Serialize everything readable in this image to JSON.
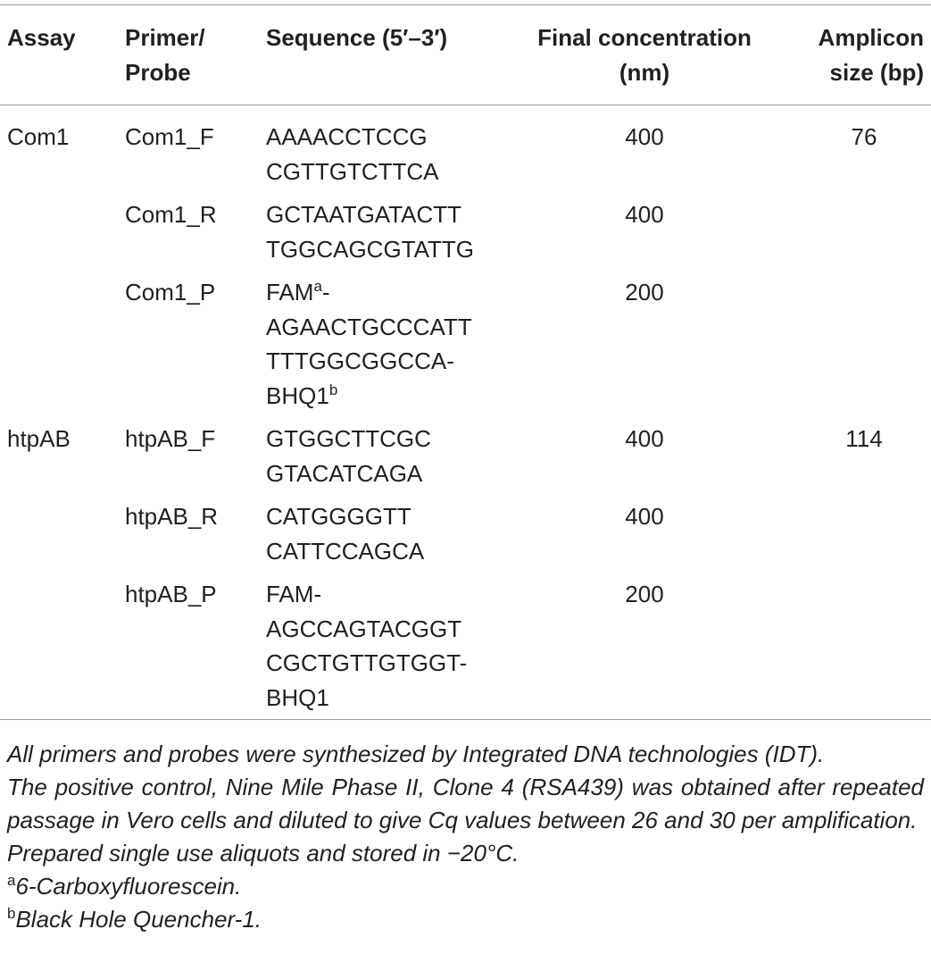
{
  "table": {
    "header": [
      [
        "Assay"
      ],
      [
        "Primer/",
        "Probe"
      ],
      [
        "Sequence (5′–3′)"
      ],
      [
        "Final concentration",
        "(nm)"
      ],
      [
        "Amplicon",
        "size (bp)"
      ]
    ],
    "groups": [
      {
        "assay": "Com1",
        "amplicon": 76,
        "primers": [
          {
            "name": "Com1_F",
            "sequence": [
              "AAAACCTCCG",
              "CGTTGTCTTCA"
            ],
            "concentration": 400
          },
          {
            "name": "Com1_R",
            "sequence": [
              "GCTAATGATACTT",
              "TGGCAGCGTATTG"
            ],
            "concentration": 400
          },
          {
            "name": "Com1_P",
            "sequence": [
              [
                {
                  "text": "FAM"
                },
                {
                  "text": "a",
                  "sup": true
                },
                {
                  "text": "-"
                }
              ],
              "AGAACTGCCCATT",
              "TTTGGCGGCCA-",
              [
                {
                  "text": "BHQ1"
                },
                {
                  "text": "b",
                  "sup": true
                }
              ]
            ],
            "concentration": 200
          }
        ]
      },
      {
        "assay": "htpAB",
        "amplicon": 114,
        "primers": [
          {
            "name": "htpAB_F",
            "sequence": [
              "GTGGCTTCGC",
              "GTACATCAGA"
            ],
            "concentration": 400
          },
          {
            "name": "htpAB_R",
            "sequence": [
              "CATGGGGTT",
              "CATTCCAGCA"
            ],
            "concentration": 400
          },
          {
            "name": "htpAB_P",
            "sequence": [
              "FAM-",
              "AGCCAGTACGGT",
              "CGCTGTTGTGGT-",
              "BHQ1"
            ],
            "concentration": 200
          }
        ]
      }
    ],
    "footnotes": [
      {
        "text": "All primers and probes were synthesized by Integrated DNA technologies (IDT)."
      },
      {
        "text": "The positive control, Nine Mile Phase II, Clone 4 (RSA439) was obtained after repeated passage in Vero cells and diluted to give Cq values between 26 and 30 per amplification."
      },
      {
        "text": "Prepared single use aliquots and stored in −20°C."
      },
      {
        "mark": "a",
        "text": "6-Carboxyfluorescein."
      },
      {
        "mark": "b",
        "text": "Black Hole Quencher-1."
      }
    ]
  }
}
